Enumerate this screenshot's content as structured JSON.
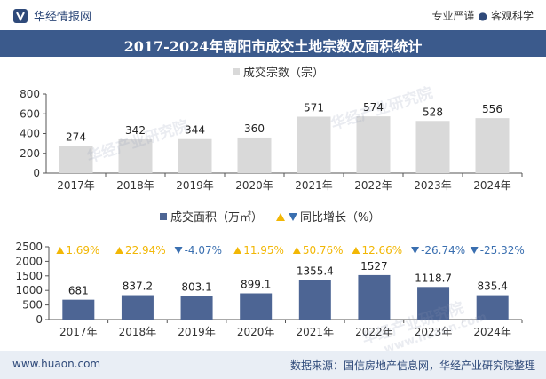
{
  "header": {
    "brand": "华经情报网",
    "slogan_left": "专业严谨",
    "slogan_right": "客观科学"
  },
  "title": "2017-2024年南阳市成交土地宗数及面积统计",
  "footer": {
    "website": "www.huaon.com",
    "source": "数据来源：国信房地产信息网，华经产业研究院整理"
  },
  "watermarks": [
    "华经产业研究院",
    "华经产业研究院",
    "华经产业研究院",
    "www.huaon.com"
  ],
  "colors": {
    "bar": "#d9d9d9",
    "bar_area": "#4d6594",
    "up": "#f2b705",
    "down": "#3a6fb0",
    "title_bg": "#3b5a8c"
  },
  "chart_data": [
    {
      "type": "bar",
      "title": "成交宗数（宗）",
      "legend": "成交宗数（宗）",
      "categories": [
        "2017年",
        "2018年",
        "2019年",
        "2020年",
        "2021年",
        "2022年",
        "2023年",
        "2024年"
      ],
      "values": [
        274,
        342,
        344,
        360,
        571,
        574,
        528,
        556
      ],
      "ylim": [
        0,
        800
      ],
      "yticks": [
        0,
        200,
        400,
        600,
        800
      ]
    },
    {
      "type": "bar",
      "title": "成交面积（万㎡）",
      "legend": "成交面积（万㎡）",
      "legend_growth": "同比增长（%）",
      "categories": [
        "2017年",
        "2018年",
        "2019年",
        "2020年",
        "2021年",
        "2022年",
        "2023年",
        "2024年"
      ],
      "values": [
        681,
        837.2,
        803.1,
        899.1,
        1355.4,
        1527,
        1118.7,
        835.4
      ],
      "growth": [
        "1.69%",
        "22.94%",
        "-4.07%",
        "11.95%",
        "50.76%",
        "12.66%",
        "-26.74%",
        "-25.32%"
      ],
      "ylim": [
        0,
        2500
      ],
      "yticks": [
        0,
        500,
        1000,
        1500,
        2000,
        2500
      ]
    }
  ]
}
